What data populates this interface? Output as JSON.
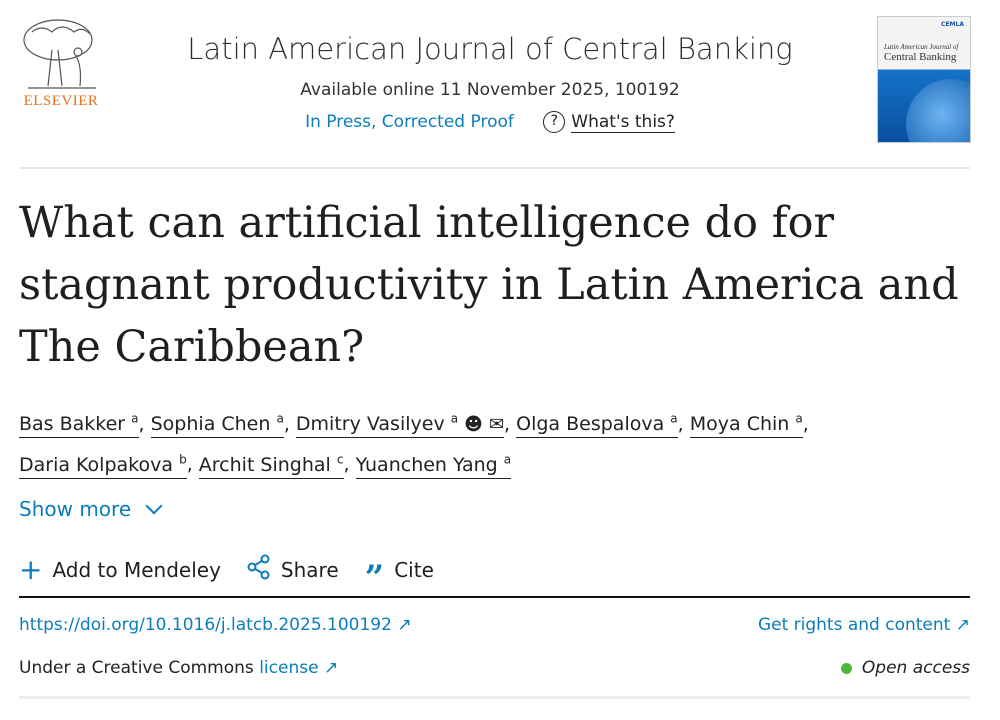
{
  "header": {
    "publisher_logo": "ELSEVIER",
    "journal_title": "Latin American Journal of Central Banking",
    "available": "Available online 11 November 2025, 100192",
    "status": "In Press, Corrected Proof",
    "whats_this": "What's this?",
    "help_icon": "?",
    "cover": {
      "org": "CEMLA",
      "line1": "Latin American Journal of",
      "line2": "Central Banking"
    }
  },
  "article": {
    "title": "What can artificial intelligence do for stagnant productivity in Latin America and The Caribbean?",
    "authors": [
      {
        "name": "Bas Bakker",
        "aff": "a"
      },
      {
        "name": "Sophia Chen",
        "aff": "a"
      },
      {
        "name": "Dmitry Vasilyev",
        "aff": "a",
        "icons": [
          "person-icon",
          "email-icon"
        ]
      },
      {
        "name": "Olga Bespalova",
        "aff": "a"
      },
      {
        "name": "Moya Chin",
        "aff": "a"
      },
      {
        "name": "Daria Kolpakova",
        "aff": "b"
      },
      {
        "name": "Archit Singhal",
        "aff": "c"
      },
      {
        "name": "Yuanchen Yang",
        "aff": "a"
      }
    ],
    "show_more": "Show more",
    "actions": {
      "mendeley": "Add to Mendeley",
      "share": "Share",
      "cite": "Cite"
    },
    "doi": "https://doi.org/10.1016/j.latcb.2025.100192",
    "rights": "Get rights and content",
    "license_prefix": "Under a Creative Commons",
    "license_link": "license",
    "open_access": "Open access"
  },
  "colors": {
    "link": "#0c7dbb",
    "publisher": "#e9711c",
    "open_access_dot": "#4fb83c"
  }
}
